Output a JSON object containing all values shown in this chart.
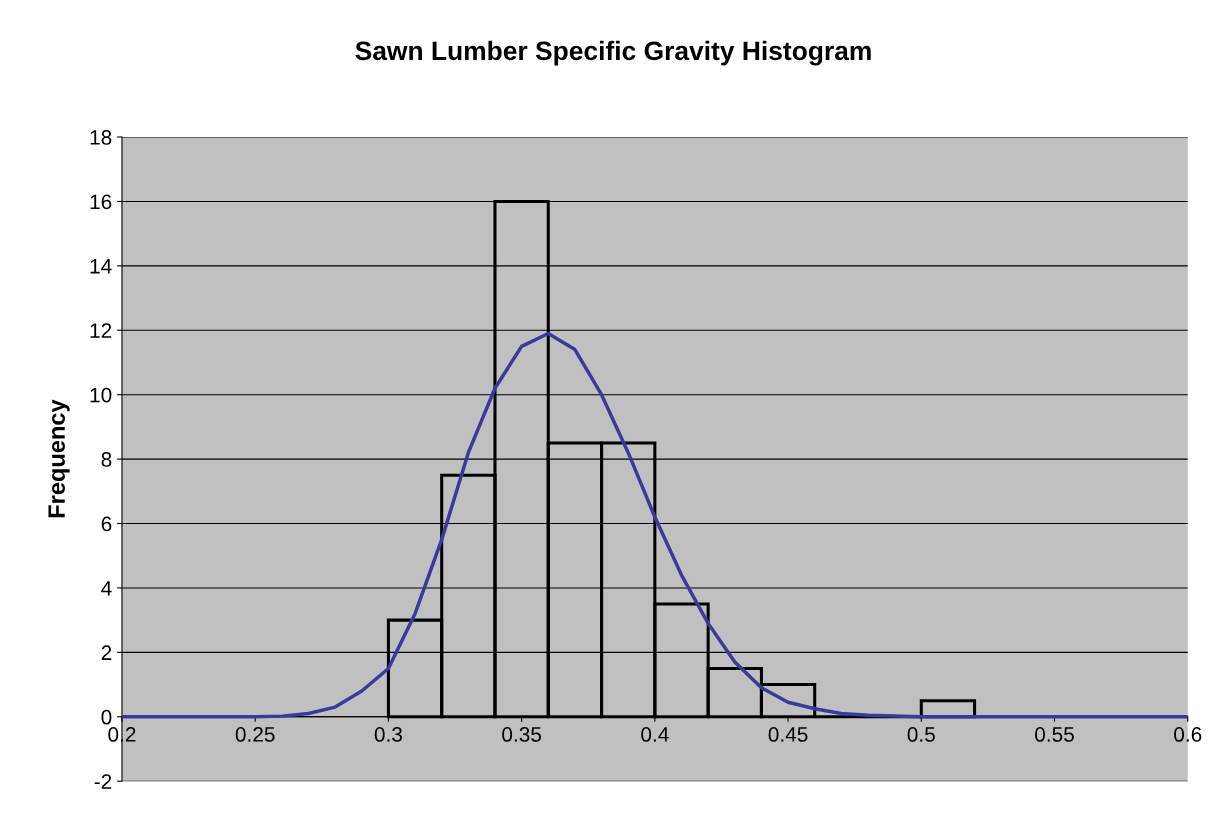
{
  "chart_data": {
    "type": "histogram",
    "title": "Sawn Lumber Specific Gravity Histogram",
    "ylabel": "Frequency",
    "xlim": [
      0.2,
      0.6
    ],
    "xticks": [
      0.2,
      0.25,
      0.3,
      0.35,
      0.4,
      0.45,
      0.5,
      0.55,
      0.6
    ],
    "ylim": [
      -2,
      18
    ],
    "yticks": [
      -2,
      0,
      2,
      4,
      6,
      8,
      10,
      12,
      14,
      16,
      18
    ],
    "grid": "y",
    "legend": false,
    "series": [
      {
        "color": "#000000",
        "bins": [
          0.3,
          0.32,
          0.34,
          0.36,
          0.38,
          0.4,
          0.42,
          0.44,
          0.46,
          0.48,
          0.5,
          0.52
        ],
        "values": [
          3,
          7.5,
          16,
          8.5,
          8.5,
          3.5,
          1.5,
          1,
          0,
          0,
          0.5
        ]
      },
      {
        "type": "line",
        "color": "#3a3a9c",
        "x": [
          0.2,
          0.25,
          0.26,
          0.27,
          0.28,
          0.29,
          0.3,
          0.31,
          0.32,
          0.33,
          0.34,
          0.35,
          0.36,
          0.37,
          0.38,
          0.39,
          0.4,
          0.41,
          0.42,
          0.43,
          0.44,
          0.45,
          0.46,
          0.47,
          0.48,
          0.5,
          0.6
        ],
        "values": [
          0,
          0,
          0.02,
          0.1,
          0.3,
          0.8,
          1.5,
          3.2,
          5.5,
          8.2,
          10.2,
          11.5,
          11.9,
          11.4,
          10,
          8.2,
          6.2,
          4.4,
          2.9,
          1.7,
          0.9,
          0.45,
          0.25,
          0.1,
          0.05,
          0,
          0
        ]
      }
    ]
  }
}
